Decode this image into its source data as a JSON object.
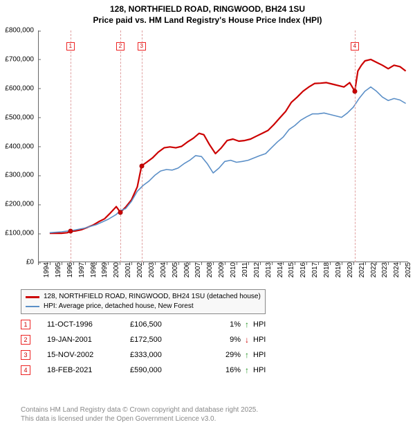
{
  "title": {
    "line1": "128, NORTHFIELD ROAD, RINGWOOD, BH24 1SU",
    "line2": "Price paid vs. HM Land Registry's House Price Index (HPI)"
  },
  "chart": {
    "type": "line",
    "background_color": "#ffffff",
    "axis_color": "#666666",
    "tick_fontsize": 10,
    "x": {
      "min": 1994,
      "max": 2025.7,
      "tick_step": 1,
      "ticks": [
        1994,
        1995,
        1996,
        1997,
        1998,
        1999,
        2000,
        2001,
        2002,
        2003,
        2004,
        2005,
        2006,
        2007,
        2008,
        2009,
        2010,
        2011,
        2012,
        2013,
        2014,
        2015,
        2016,
        2017,
        2018,
        2019,
        2020,
        2021,
        2022,
        2023,
        2024,
        2025
      ]
    },
    "y": {
      "min": 0,
      "max": 800000,
      "tick_step": 100000,
      "ticks": [
        "£0",
        "£100,000",
        "£200,000",
        "£300,000",
        "£400,000",
        "£500,000",
        "£600,000",
        "£700,000",
        "£800,000"
      ]
    },
    "vlines": {
      "color": "#e0a0a0",
      "dash": "3,3",
      "at_x": [
        1996.78,
        2001.05,
        2002.87,
        2021.13
      ]
    },
    "marker_boxes": {
      "border_color": "#ee2222",
      "text_color": "#cc0000",
      "y": 760000,
      "items": [
        {
          "x": 1996.78,
          "label": "1"
        },
        {
          "x": 2001.05,
          "label": "2"
        },
        {
          "x": 2002.87,
          "label": "3"
        },
        {
          "x": 2021.13,
          "label": "4"
        }
      ]
    },
    "series": [
      {
        "name": "price_paid",
        "label": "128, NORTHFIELD ROAD, RINGWOOD, BH24 1SU (detached house)",
        "color": "#cc0000",
        "width": 2.2,
        "points_marked": [
          {
            "x": 1996.78,
            "y": 106500
          },
          {
            "x": 2001.05,
            "y": 172500
          },
          {
            "x": 2002.87,
            "y": 333000
          },
          {
            "x": 2021.13,
            "y": 590000
          }
        ],
        "data": [
          [
            1995.0,
            100000
          ],
          [
            1995.5,
            100000
          ],
          [
            1996.0,
            100000
          ],
          [
            1996.5,
            102000
          ],
          [
            1996.78,
            106500
          ],
          [
            1997.2,
            108000
          ],
          [
            1997.7,
            112000
          ],
          [
            1998.2,
            120000
          ],
          [
            1998.7,
            128000
          ],
          [
            1999.2,
            140000
          ],
          [
            1999.7,
            150000
          ],
          [
            2000.2,
            170000
          ],
          [
            2000.7,
            192000
          ],
          [
            2001.05,
            172500
          ],
          [
            2001.5,
            190000
          ],
          [
            2002.0,
            215000
          ],
          [
            2002.5,
            260000
          ],
          [
            2002.87,
            333000
          ],
          [
            2003.3,
            345000
          ],
          [
            2003.8,
            360000
          ],
          [
            2004.3,
            380000
          ],
          [
            2004.8,
            395000
          ],
          [
            2005.3,
            398000
          ],
          [
            2005.8,
            395000
          ],
          [
            2006.3,
            400000
          ],
          [
            2006.8,
            415000
          ],
          [
            2007.3,
            428000
          ],
          [
            2007.8,
            445000
          ],
          [
            2008.2,
            440000
          ],
          [
            2008.7,
            405000
          ],
          [
            2009.2,
            375000
          ],
          [
            2009.7,
            395000
          ],
          [
            2010.2,
            420000
          ],
          [
            2010.7,
            425000
          ],
          [
            2011.2,
            418000
          ],
          [
            2011.7,
            420000
          ],
          [
            2012.2,
            425000
          ],
          [
            2012.7,
            435000
          ],
          [
            2013.2,
            445000
          ],
          [
            2013.7,
            455000
          ],
          [
            2014.2,
            475000
          ],
          [
            2014.7,
            498000
          ],
          [
            2015.2,
            520000
          ],
          [
            2015.7,
            552000
          ],
          [
            2016.2,
            570000
          ],
          [
            2016.7,
            590000
          ],
          [
            2017.2,
            605000
          ],
          [
            2017.7,
            617000
          ],
          [
            2018.2,
            618000
          ],
          [
            2018.7,
            620000
          ],
          [
            2019.2,
            615000
          ],
          [
            2019.7,
            610000
          ],
          [
            2020.2,
            605000
          ],
          [
            2020.7,
            620000
          ],
          [
            2021.13,
            590000
          ],
          [
            2021.4,
            660000
          ],
          [
            2021.7,
            680000
          ],
          [
            2022.0,
            695000
          ],
          [
            2022.5,
            700000
          ],
          [
            2023.0,
            690000
          ],
          [
            2023.5,
            680000
          ],
          [
            2024.0,
            668000
          ],
          [
            2024.5,
            680000
          ],
          [
            2025.0,
            675000
          ],
          [
            2025.5,
            660000
          ]
        ]
      },
      {
        "name": "hpi",
        "label": "HPI: Average price, detached house, New Forest",
        "color": "#5b8fc7",
        "width": 1.6,
        "points_marked": [],
        "data": [
          [
            1995.0,
            102000
          ],
          [
            1996.0,
            105000
          ],
          [
            1997.0,
            110000
          ],
          [
            1998.0,
            118000
          ],
          [
            1999.0,
            130000
          ],
          [
            2000.0,
            148000
          ],
          [
            2000.7,
            165000
          ],
          [
            2001.05,
            178000
          ],
          [
            2001.5,
            185000
          ],
          [
            2002.0,
            210000
          ],
          [
            2002.5,
            245000
          ],
          [
            2003.0,
            265000
          ],
          [
            2003.5,
            280000
          ],
          [
            2004.0,
            300000
          ],
          [
            2004.5,
            315000
          ],
          [
            2005.0,
            320000
          ],
          [
            2005.5,
            318000
          ],
          [
            2006.0,
            325000
          ],
          [
            2006.5,
            340000
          ],
          [
            2007.0,
            352000
          ],
          [
            2007.5,
            368000
          ],
          [
            2008.0,
            365000
          ],
          [
            2008.5,
            340000
          ],
          [
            2009.0,
            308000
          ],
          [
            2009.5,
            325000
          ],
          [
            2010.0,
            348000
          ],
          [
            2010.5,
            352000
          ],
          [
            2011.0,
            345000
          ],
          [
            2011.5,
            348000
          ],
          [
            2012.0,
            352000
          ],
          [
            2012.5,
            360000
          ],
          [
            2013.0,
            368000
          ],
          [
            2013.5,
            375000
          ],
          [
            2014.0,
            395000
          ],
          [
            2014.5,
            415000
          ],
          [
            2015.0,
            432000
          ],
          [
            2015.5,
            458000
          ],
          [
            2016.0,
            472000
          ],
          [
            2016.5,
            490000
          ],
          [
            2017.0,
            502000
          ],
          [
            2017.5,
            512000
          ],
          [
            2018.0,
            512000
          ],
          [
            2018.5,
            515000
          ],
          [
            2019.0,
            510000
          ],
          [
            2019.5,
            505000
          ],
          [
            2020.0,
            500000
          ],
          [
            2020.5,
            515000
          ],
          [
            2021.0,
            535000
          ],
          [
            2021.5,
            565000
          ],
          [
            2022.0,
            590000
          ],
          [
            2022.5,
            605000
          ],
          [
            2023.0,
            590000
          ],
          [
            2023.5,
            570000
          ],
          [
            2024.0,
            558000
          ],
          [
            2024.5,
            565000
          ],
          [
            2025.0,
            560000
          ],
          [
            2025.5,
            548000
          ]
        ]
      }
    ]
  },
  "legend": {
    "border_color": "#888888",
    "bg_color": "#f8f8f8",
    "fontsize": 10
  },
  "transactions_table": {
    "box_border": "#ee2222",
    "box_text": "#cc0000",
    "fontsize": 11,
    "rows": [
      {
        "n": "1",
        "date": "11-OCT-1996",
        "price": "£106,500",
        "pct": "1%",
        "arrow": "↑",
        "arrow_color": "#1a8f1a",
        "suffix": "HPI"
      },
      {
        "n": "2",
        "date": "19-JAN-2001",
        "price": "£172,500",
        "pct": "9%",
        "arrow": "↓",
        "arrow_color": "#cc0000",
        "suffix": "HPI"
      },
      {
        "n": "3",
        "date": "15-NOV-2002",
        "price": "£333,000",
        "pct": "29%",
        "arrow": "↑",
        "arrow_color": "#1a8f1a",
        "suffix": "HPI"
      },
      {
        "n": "4",
        "date": "18-FEB-2021",
        "price": "£590,000",
        "pct": "16%",
        "arrow": "↑",
        "arrow_color": "#1a8f1a",
        "suffix": "HPI"
      }
    ]
  },
  "footer": {
    "line1": "Contains HM Land Registry data © Crown copyright and database right 2025.",
    "line2": "This data is licensed under the Open Government Licence v3.0.",
    "color": "#888888"
  }
}
